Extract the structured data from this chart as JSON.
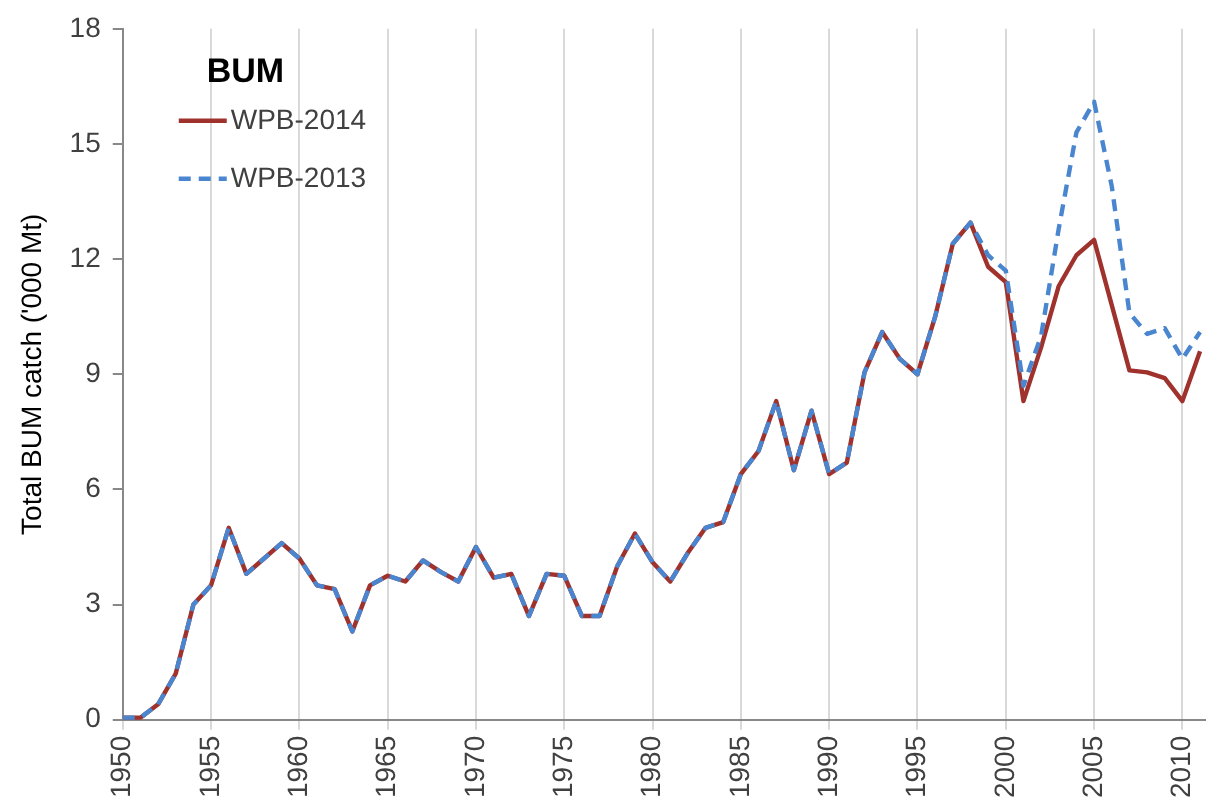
{
  "chart_data": {
    "type": "line",
    "ylabel": "Total BUM catch ('000 Mt)",
    "legend_title": "BUM",
    "legend": "top left",
    "grid": "x",
    "marker": "none",
    "x": [
      1950,
      1951,
      1952,
      1953,
      1954,
      1955,
      1956,
      1957,
      1958,
      1959,
      1960,
      1961,
      1962,
      1963,
      1964,
      1965,
      1966,
      1967,
      1968,
      1969,
      1970,
      1971,
      1972,
      1973,
      1974,
      1975,
      1976,
      1977,
      1978,
      1979,
      1980,
      1981,
      1982,
      1983,
      1984,
      1985,
      1986,
      1987,
      1988,
      1989,
      1990,
      1991,
      1992,
      1993,
      1994,
      1995,
      1996,
      1997,
      1998,
      1999,
      2000,
      2001,
      2002,
      2003,
      2004,
      2005,
      2006,
      2007,
      2008,
      2009,
      2010,
      2011
    ],
    "xlim": [
      1950,
      2011.3
    ],
    "xticks": [
      1950,
      1955,
      1960,
      1965,
      1970,
      1975,
      1980,
      1985,
      1990,
      1995,
      2000,
      2005,
      2010
    ],
    "ylim": [
      0,
      18
    ],
    "yticks": [
      0,
      3,
      6,
      9,
      12,
      15,
      18
    ],
    "series": [
      {
        "name": "WPB-2014",
        "color": "#a0322d",
        "line_style": "solid",
        "values": [
          0.05,
          0.05,
          0.4,
          1.2,
          3.0,
          3.5,
          5.0,
          3.8,
          4.2,
          4.6,
          4.2,
          3.5,
          3.4,
          2.3,
          3.5,
          3.75,
          3.6,
          4.15,
          3.85,
          3.6,
          4.5,
          3.7,
          3.8,
          2.7,
          3.8,
          3.75,
          2.7,
          2.7,
          4.0,
          4.85,
          4.1,
          3.6,
          4.35,
          5.0,
          5.15,
          6.4,
          7.0,
          8.3,
          6.5,
          8.05,
          6.4,
          6.7,
          9.05,
          10.1,
          9.4,
          9.0,
          10.5,
          12.4,
          12.95,
          11.8,
          11.4,
          8.3,
          9.7,
          11.3,
          12.1,
          12.5,
          10.8,
          9.1,
          9.05,
          8.9,
          8.3,
          9.6
        ]
      },
      {
        "name": "WPB-2013",
        "color": "#4a86d0",
        "line_style": "dashed",
        "values": [
          0.05,
          0.05,
          0.4,
          1.2,
          3.0,
          3.5,
          5.0,
          3.8,
          4.2,
          4.6,
          4.2,
          3.5,
          3.4,
          2.3,
          3.5,
          3.75,
          3.6,
          4.15,
          3.85,
          3.6,
          4.5,
          3.7,
          3.8,
          2.7,
          3.8,
          3.75,
          2.7,
          2.7,
          4.0,
          4.85,
          4.1,
          3.6,
          4.35,
          5.0,
          5.15,
          6.4,
          7.0,
          8.3,
          6.5,
          8.05,
          6.4,
          6.7,
          9.05,
          10.1,
          9.4,
          9.0,
          10.5,
          12.4,
          12.95,
          12.1,
          11.7,
          8.7,
          10.0,
          12.8,
          15.3,
          16.1,
          13.9,
          10.6,
          10.05,
          10.2,
          9.4,
          10.1
        ]
      }
    ]
  }
}
